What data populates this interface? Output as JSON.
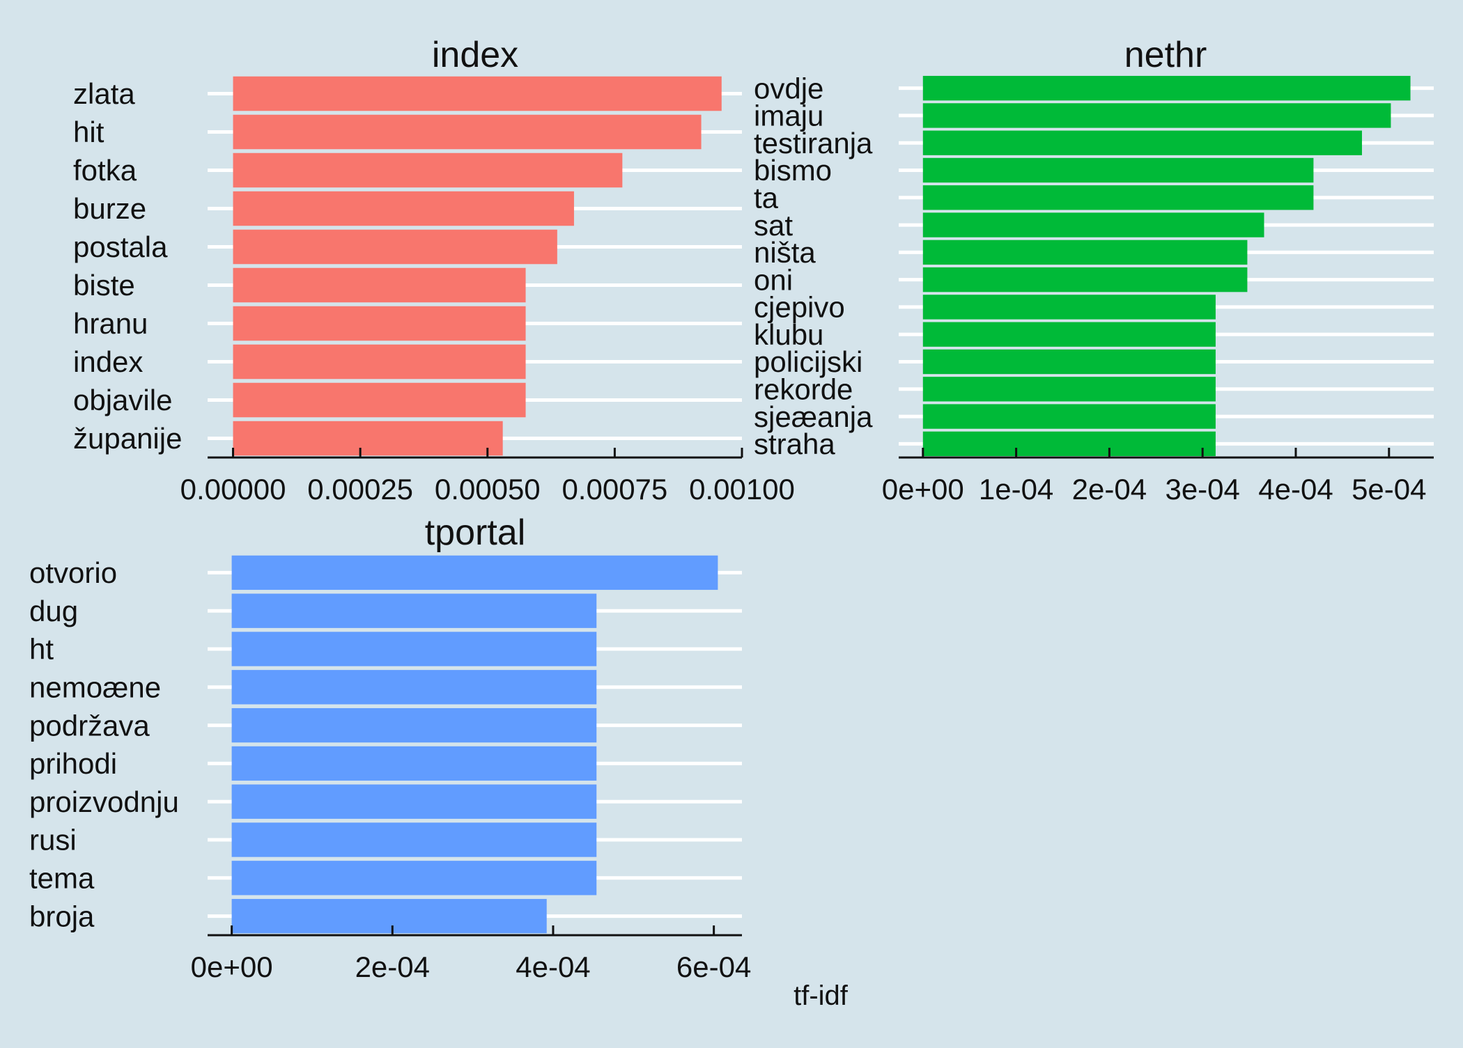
{
  "chart_data": [
    {
      "type": "bar",
      "orientation": "horizontal",
      "title": "index",
      "color": "#f8766d",
      "categories": [
        "zlata",
        "hit",
        "fotka",
        "burze",
        "postala",
        "biste",
        "hranu",
        "index",
        "objavile",
        "županije"
      ],
      "values": [
        0.00096,
        0.00092,
        0.000765,
        0.00067,
        0.000637,
        0.000575,
        0.000575,
        0.000575,
        0.000575,
        0.00053
      ],
      "xlim": [
        -5e-05,
        0.001
      ],
      "ticks": [
        0,
        0.00025,
        0.0005,
        0.00075,
        0.001
      ],
      "tick_labels": [
        "0.00000",
        "0.00025",
        "0.00050",
        "0.00075",
        "0.00100"
      ]
    },
    {
      "type": "bar",
      "orientation": "horizontal",
      "title": "nethr",
      "color": "#00ba38",
      "categories": [
        "ovdje",
        "imaju",
        "testiranja",
        "bismo",
        "ta",
        "sat",
        "ništa",
        "oni",
        "cjepivo",
        "klubu",
        "policijski",
        "rekorde",
        "sjeæanja",
        "straha"
      ],
      "values": [
        0.000523,
        0.000502,
        0.000471,
        0.000419,
        0.000419,
        0.000366,
        0.000348,
        0.000348,
        0.000314,
        0.000314,
        0.000314,
        0.000314,
        0.000314,
        0.000314
      ],
      "xlim": [
        -2.6e-05,
        0.000548
      ],
      "ticks": [
        0,
        0.0001,
        0.0002,
        0.0003,
        0.0004,
        0.0005
      ],
      "tick_labels": [
        "0e+00",
        "1e-04",
        "2e-04",
        "3e-04",
        "4e-04",
        "5e-04"
      ]
    },
    {
      "type": "bar",
      "orientation": "horizontal",
      "title": "tportal",
      "color": "#619cff",
      "categories": [
        "otvorio",
        "dug",
        "ht",
        "nemoæne",
        "podržava",
        "prihodi",
        "proizvodnju",
        "rusi",
        "tema",
        "broja"
      ],
      "values": [
        0.000605,
        0.000454,
        0.000454,
        0.000454,
        0.000454,
        0.000454,
        0.000454,
        0.000454,
        0.000454,
        0.000392
      ],
      "xlim": [
        -3e-05,
        0.000635
      ],
      "ticks": [
        0,
        0.0002,
        0.0004,
        0.0006
      ],
      "tick_labels": [
        "0e+00",
        "2e-04",
        "4e-04",
        "6e-04"
      ]
    }
  ],
  "xlabel": "tf-idf",
  "colors": {
    "background": "#d5e4eb",
    "gridline": "#ffffff",
    "axis": "#111111"
  }
}
